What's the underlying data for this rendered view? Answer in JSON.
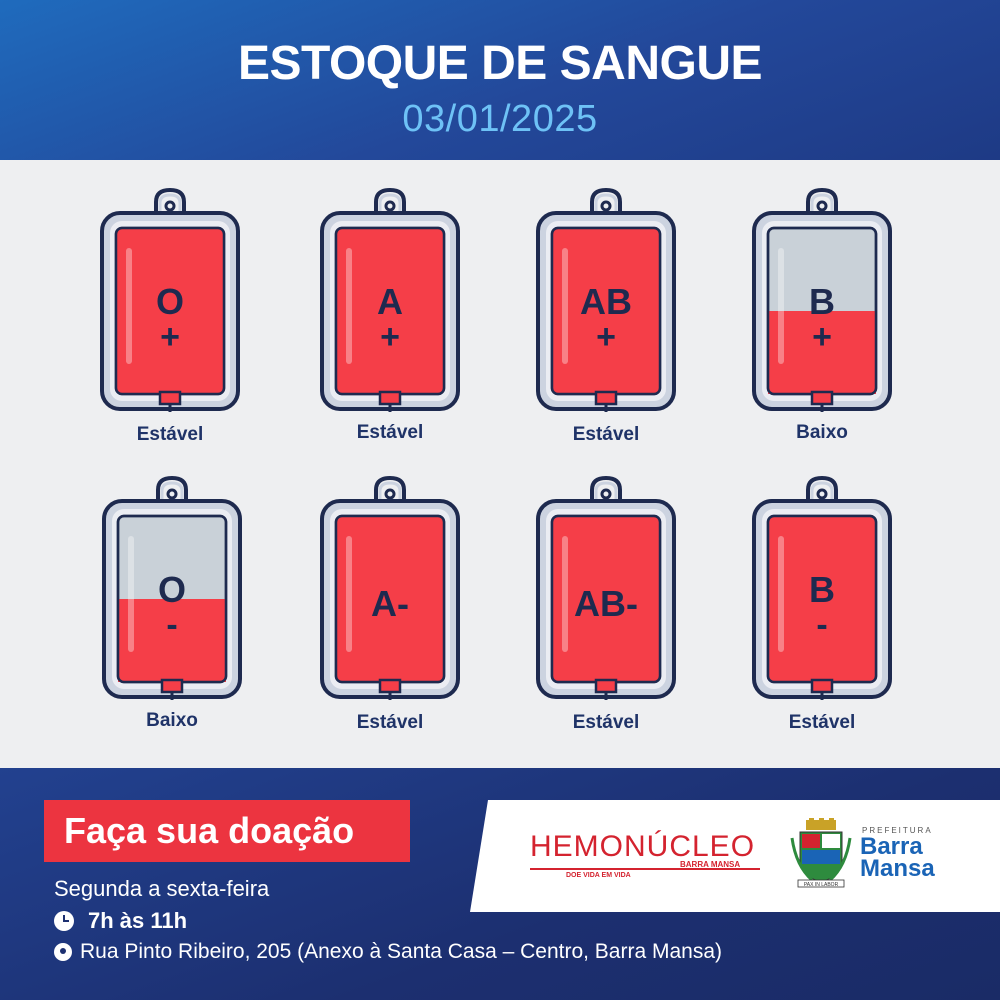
{
  "header": {
    "title": "ESTOQUE DE SANGUE",
    "date": "03/01/2025"
  },
  "colors": {
    "blood": "#f53e48",
    "empty": "#c9d1d8",
    "frame": "#1e2a4f",
    "status_text": "#1f3368"
  },
  "bags": [
    {
      "type": "O",
      "sign": "+",
      "status": "Estável",
      "fill_level": 1.0
    },
    {
      "type": "A",
      "sign": "+",
      "status": "Estável",
      "fill_level": 1.0
    },
    {
      "type": "AB",
      "sign": "+",
      "status": "Estável",
      "fill_level": 1.0
    },
    {
      "type": "B",
      "sign": "+",
      "status": "Baixo",
      "fill_level": 0.5
    },
    {
      "type": "O",
      "sign": "-",
      "status": "Baixo",
      "fill_level": 0.5
    },
    {
      "type": "A-",
      "sign": "",
      "status": "Estável",
      "fill_level": 1.0
    },
    {
      "type": "AB-",
      "sign": "",
      "status": "Estável",
      "fill_level": 1.0
    },
    {
      "type": "B",
      "sign": "-",
      "status": "Estável",
      "fill_level": 1.0
    }
  ],
  "footer": {
    "cta": "Faça sua doação",
    "days": "Segunda a sexta-feira",
    "hours": "7h às 11h",
    "address": "Rua Pinto Ribeiro, 205  (Anexo à Santa Casa – Centro, Barra Mansa)"
  },
  "logos": {
    "hemonucleo": "HEMONÚCLEO",
    "hemonucleo_tagline": "DOE VIDA EM VIDA",
    "hemonucleo_sub": "BARRA MANSA",
    "prefeitura_label": "PREFEITURA",
    "prefeitura_name_1": "Barra",
    "prefeitura_name_2": "Mansa",
    "crest_motto": "PAX IN LABOR"
  }
}
